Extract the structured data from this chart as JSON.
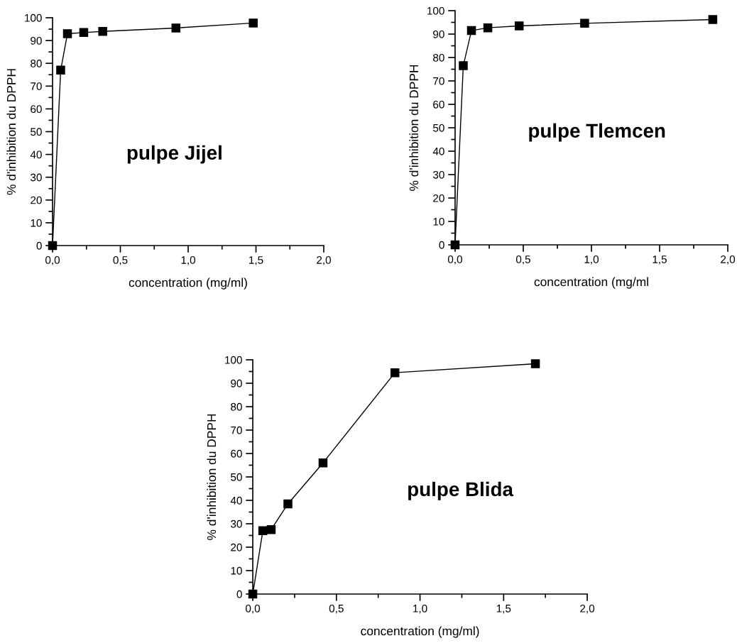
{
  "chart_data": [
    {
      "type": "line",
      "xlabel": "concentration (mg/ml)",
      "ylabel": "% d'inhibition du DPPH",
      "annotations": [
        "pulpe Jijel"
      ],
      "marker": "square",
      "line_style": "solid",
      "x": [
        0,
        0.06,
        0.11,
        0.23,
        0.37,
        0.91,
        1.48
      ],
      "series": [
        {
          "color": "#000000",
          "values": [
            0,
            77,
            93,
            93.5,
            94,
            95.5,
            97.7
          ]
        }
      ],
      "xlim": [
        0,
        2
      ],
      "ylim": [
        0,
        100
      ],
      "xticks": [
        {
          "value": 0,
          "label": "0,0"
        },
        {
          "value": 0.25,
          "label": null
        },
        {
          "value": 0.5,
          "label": "0,5"
        },
        {
          "value": 0.75,
          "label": null
        },
        {
          "value": 1,
          "label": "1,0"
        },
        {
          "value": 1.25,
          "label": null
        },
        {
          "value": 1.5,
          "label": "1,5"
        },
        {
          "value": 1.75,
          "label": null
        },
        {
          "value": 2,
          "label": "2,0"
        }
      ],
      "yticks": [
        0,
        {
          "value": 5,
          "label": null
        },
        10,
        {
          "value": 15,
          "label": null
        },
        20,
        {
          "value": 25,
          "label": null
        },
        30,
        {
          "value": 35,
          "label": null
        },
        40,
        {
          "value": 45,
          "label": null
        },
        50,
        {
          "value": 55,
          "label": null
        },
        60,
        {
          "value": 65,
          "label": null
        },
        70,
        {
          "value": 75,
          "label": null
        },
        80,
        {
          "value": 85,
          "label": null
        },
        90,
        {
          "value": 95,
          "label": null
        },
        100
      ]
    },
    {
      "type": "line",
      "xlabel": "concentration (mg/ml",
      "ylabel": "% d'inhibition du DPPH",
      "annotations": [
        "pulpe Tlemcen"
      ],
      "marker": "square",
      "line_style": "solid",
      "x": [
        0,
        0.06,
        0.12,
        0.24,
        0.47,
        0.95,
        1.89
      ],
      "series": [
        {
          "color": "#000000",
          "values": [
            0,
            76.5,
            91.5,
            92.7,
            93.5,
            94.6,
            96.2
          ]
        }
      ],
      "xlim": [
        0,
        2
      ],
      "ylim": [
        0,
        100
      ],
      "xticks": [
        {
          "value": 0,
          "label": "0,0"
        },
        {
          "value": 0.25,
          "label": null
        },
        {
          "value": 0.5,
          "label": "0,5"
        },
        {
          "value": 0.75,
          "label": null
        },
        {
          "value": 1,
          "label": "1,0"
        },
        {
          "value": 1.25,
          "label": null
        },
        {
          "value": 1.5,
          "label": "1,5"
        },
        {
          "value": 1.75,
          "label": null
        },
        {
          "value": 2,
          "label": "2,0"
        }
      ],
      "yticks": [
        0,
        {
          "value": 5,
          "label": null
        },
        10,
        {
          "value": 15,
          "label": null
        },
        20,
        {
          "value": 25,
          "label": null
        },
        30,
        {
          "value": 35,
          "label": null
        },
        40,
        {
          "value": 45,
          "label": null
        },
        50,
        {
          "value": 55,
          "label": null
        },
        60,
        {
          "value": 65,
          "label": null
        },
        70,
        {
          "value": 75,
          "label": null
        },
        80,
        {
          "value": 85,
          "label": null
        },
        90,
        {
          "value": 95,
          "label": null
        },
        100
      ]
    },
    {
      "type": "line",
      "xlabel": "concentration (mg/ml)",
      "ylabel": "% d'inhibition du DPPH",
      "annotations": [
        "pulpe Blida"
      ],
      "marker": "square",
      "line_style": "solid",
      "x": [
        0,
        0.06,
        0.11,
        0.21,
        0.42,
        0.85,
        1.69
      ],
      "series": [
        {
          "color": "#000000",
          "values": [
            0,
            27,
            27.5,
            38.5,
            56,
            94.5,
            98.3
          ]
        }
      ],
      "xlim": [
        0,
        2
      ],
      "ylim": [
        0,
        100
      ],
      "xticks": [
        {
          "value": 0,
          "label": "0,0"
        },
        {
          "value": 0.25,
          "label": null
        },
        {
          "value": 0.5,
          "label": "0,5"
        },
        {
          "value": 0.75,
          "label": null
        },
        {
          "value": 1,
          "label": "1,0"
        },
        {
          "value": 1.25,
          "label": null
        },
        {
          "value": 1.5,
          "label": "1,5"
        },
        {
          "value": 1.75,
          "label": null
        },
        {
          "value": 2,
          "label": "2,0"
        }
      ],
      "yticks": [
        0,
        {
          "value": 5,
          "label": null
        },
        10,
        {
          "value": 15,
          "label": null
        },
        20,
        {
          "value": 25,
          "label": null
        },
        30,
        {
          "value": 35,
          "label": null
        },
        40,
        {
          "value": 45,
          "label": null
        },
        50,
        {
          "value": 55,
          "label": null
        },
        60,
        {
          "value": 65,
          "label": null
        },
        70,
        {
          "value": 75,
          "label": null
        },
        80,
        {
          "value": 85,
          "label": null
        },
        90,
        {
          "value": 95,
          "label": null
        },
        100
      ]
    }
  ]
}
